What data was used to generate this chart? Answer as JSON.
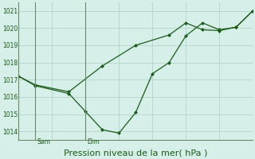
{
  "bg_color": "#d6efe8",
  "grid_color": "#b8d8cc",
  "line_color": "#1a5c1a",
  "vline_color": "#6a8a6a",
  "xlabel": "Pression niveau de la mer( hPa )",
  "ylim": [
    1013.5,
    1021.5
  ],
  "xlim": [
    0,
    14
  ],
  "yticks": [
    1014,
    1015,
    1016,
    1017,
    1018,
    1019,
    1020,
    1021
  ],
  "sam_x": 1.0,
  "dim_x": 4.0,
  "line1_x": [
    0,
    1,
    3,
    5,
    7,
    9,
    10,
    11,
    12,
    13,
    14
  ],
  "line1_y": [
    1017.2,
    1016.7,
    1016.3,
    1017.8,
    1019.0,
    1019.6,
    1020.3,
    1019.9,
    1019.85,
    1020.05,
    1021.0
  ],
  "line2_x": [
    0,
    1,
    3,
    4,
    5,
    6,
    7,
    8,
    9,
    10,
    11,
    12,
    13,
    14
  ],
  "line2_y": [
    1017.2,
    1016.65,
    1016.2,
    1015.15,
    1014.1,
    1013.9,
    1015.1,
    1017.35,
    1018.0,
    1019.55,
    1020.3,
    1019.9,
    1020.05,
    1021.0
  ],
  "ylabel_fontsize": 6,
  "xlabel_fontsize": 8
}
